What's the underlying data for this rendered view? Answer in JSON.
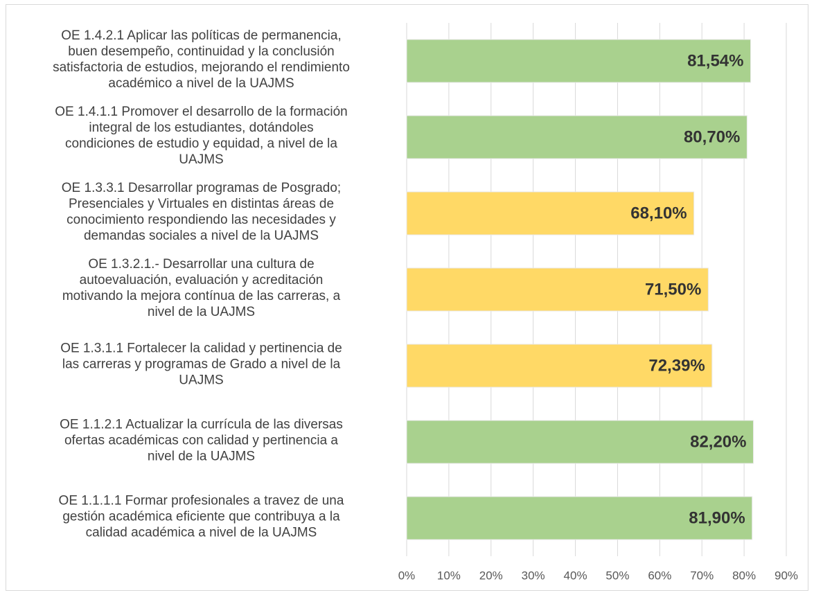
{
  "chart_data": {
    "type": "barh",
    "categories": [
      "OE 1.4.2.1 Aplicar las políticas de permanencia,\nbuen desempeño, continuidad y la conclusión\nsatisfactoria de estudios, mejorando el rendimiento\nacadémico a nivel de la UAJMS",
      "OE 1.4.1.1 Promover el desarrollo de la formación\nintegral de los estudiantes, dotándoles\ncondiciones de estudio y equidad, a nivel de la\nUAJMS",
      "OE 1.3.3.1 Desarrollar programas de Posgrado;\nPresenciales y Virtuales en distintas áreas de\nconocimiento respondiendo las necesidades y\ndemandas sociales a nivel de la UAJMS",
      "OE 1.3.2.1.- Desarrollar una cultura de\nautoevaluación, evaluación y acreditación\nmotivando la mejora contínua de las carreras, a\nnivel de la UAJMS",
      "OE 1.3.1.1 Fortalecer la calidad y pertinencia de\nlas carreras y programas de Grado a nivel de la\nUAJMS",
      "OE 1.1.2.1 Actualizar la currícula de las diversas\nofertas académicas con calidad y pertinencia a\nnivel de la UAJMS",
      "OE 1.1.1.1 Formar profesionales a travez de una\ngestión académica eficiente que contribuya a la\ncalidad académica a nivel de la UAJMS"
    ],
    "values": [
      81.54,
      80.7,
      68.1,
      71.5,
      72.39,
      82.2,
      81.9
    ],
    "value_labels": [
      "81,54%",
      "80,70%",
      "68,10%",
      "71,50%",
      "72,39%",
      "82,20%",
      "81,90%"
    ],
    "colors": [
      "#a9d18e",
      "#a9d18e",
      "#ffd966",
      "#ffd966",
      "#ffd966",
      "#a9d18e",
      "#a9d18e"
    ],
    "xlim": [
      0,
      90
    ],
    "xticks": [
      {
        "value": 0,
        "label": "0%"
      },
      {
        "value": 10,
        "label": "10%"
      },
      {
        "value": 20,
        "label": "20%"
      },
      {
        "value": 30,
        "label": "30%"
      },
      {
        "value": 40,
        "label": "40%"
      },
      {
        "value": 50,
        "label": "50%"
      },
      {
        "value": 60,
        "label": "60%"
      },
      {
        "value": 70,
        "label": "70%"
      },
      {
        "value": 80,
        "label": "80%"
      },
      {
        "value": 90,
        "label": "90%"
      }
    ],
    "grid": true
  }
}
